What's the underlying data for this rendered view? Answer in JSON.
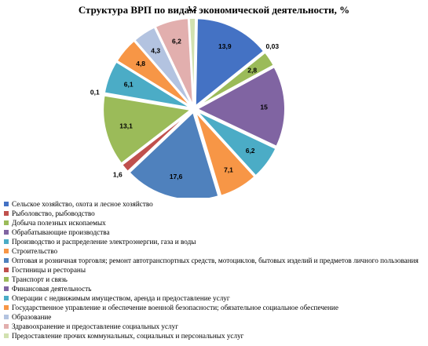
{
  "chart_data": {
    "type": "pie",
    "title": "Структура ВРП по видам экономической деятельности, %",
    "legend_position": "bottom",
    "slices": [
      {
        "label": "Сельское хозяйство, охота и лесное хозяйство",
        "value": 13.9,
        "value_label": "13,9",
        "color": "#4472C4"
      },
      {
        "label": "Рыболовство, рыбоводство",
        "value": 0.03,
        "value_label": "0,03",
        "color": "#C0504D"
      },
      {
        "label": "Добыча полезных ископаемых",
        "value": 2.8,
        "value_label": "2,8",
        "color": "#9BBB59"
      },
      {
        "label": "Обрабатывающие производства",
        "value": 15,
        "value_label": "15",
        "color": "#8064A2"
      },
      {
        "label": "Производство и распределение электроэнергии, газа и воды",
        "value": 6.2,
        "value_label": "6,2",
        "color": "#4BACC6"
      },
      {
        "label": "Строительство",
        "value": 7.1,
        "value_label": "7,1",
        "color": "#F79646"
      },
      {
        "label": "Оптовая и розничная торговля; ремонт автотранспортных средств, мотоциклов, бытовых изделий и предметов личного пользования",
        "value": 17.6,
        "value_label": "17,6",
        "color": "#4F81BD"
      },
      {
        "label": "Гостиницы и рестораны",
        "value": 1.6,
        "value_label": "1,6",
        "color": "#C0504D"
      },
      {
        "label": "Транспорт и связь",
        "value": 13.1,
        "value_label": "13,1",
        "color": "#9BBB59"
      },
      {
        "label": "Финансовая деятельность",
        "value": 0.1,
        "value_label": "0,1",
        "color": "#8064A2"
      },
      {
        "label": "Операции с недвижимым имуществом, аренда и предоставление услуг",
        "value": 6.1,
        "value_label": "6,1",
        "color": "#4BACC6"
      },
      {
        "label": "Государственное управление и обеспечение военной безопасности; обязательное социальное обеспечение",
        "value": 4.8,
        "value_label": "4,8",
        "color": "#F79646"
      },
      {
        "label": "Образование",
        "value": 4.3,
        "value_label": "4,3",
        "color": "#B3C3E0"
      },
      {
        "label": "Здравоохранение и предоставление социальных услуг",
        "value": 6.2,
        "value_label": "6,2",
        "color": "#E2AFAE"
      },
      {
        "label": "Предоставление прочих коммунальных, социальных и персональных услуг",
        "value": 1.2,
        "value_label": "1,2",
        "color": "#D1E1B0"
      }
    ]
  }
}
